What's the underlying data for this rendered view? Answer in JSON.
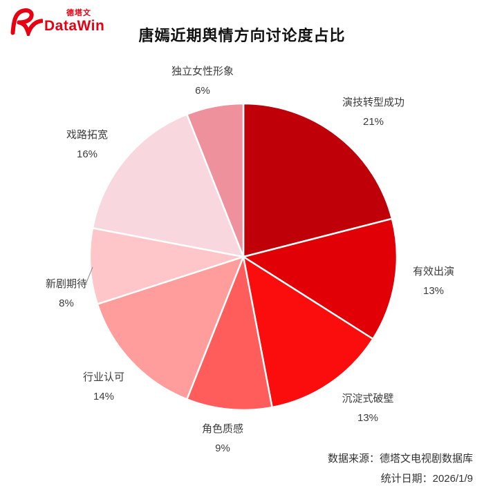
{
  "logo": {
    "brand_cn": "德塔文",
    "brand_en": "DataWin"
  },
  "title": "唐嫣近期舆情方向讨论度占比",
  "chart_data": {
    "type": "pie",
    "title": "唐嫣近期舆情方向讨论度占比",
    "categories": [
      "演技转型成功",
      "有效出演",
      "沉淀式破壁",
      "角色质感",
      "行业认可",
      "新剧期待",
      "戏路拓宽",
      "独立女性形象"
    ],
    "values": [
      21,
      13,
      13,
      9,
      14,
      8,
      16,
      6
    ],
    "unit": "%",
    "colors": [
      "#c00008",
      "#e00006",
      "#fc0d0d",
      "#ff5c5c",
      "#ff9c9c",
      "#ffc6c9",
      "#f8d8de",
      "#ee919d"
    ],
    "start_angle_deg": 0,
    "direction": "clockwise",
    "labels_outside": true,
    "slice_border_color": "#ffffff",
    "label_color": "#3d3d3d",
    "legend": "none"
  },
  "footer": {
    "source": "数据来源：德塔文电视剧数据库",
    "date": "统计日期：2026/1/9"
  },
  "colors": {
    "brand_red": "#e60012",
    "title_color": "#111111",
    "footer_color": "#333333"
  }
}
